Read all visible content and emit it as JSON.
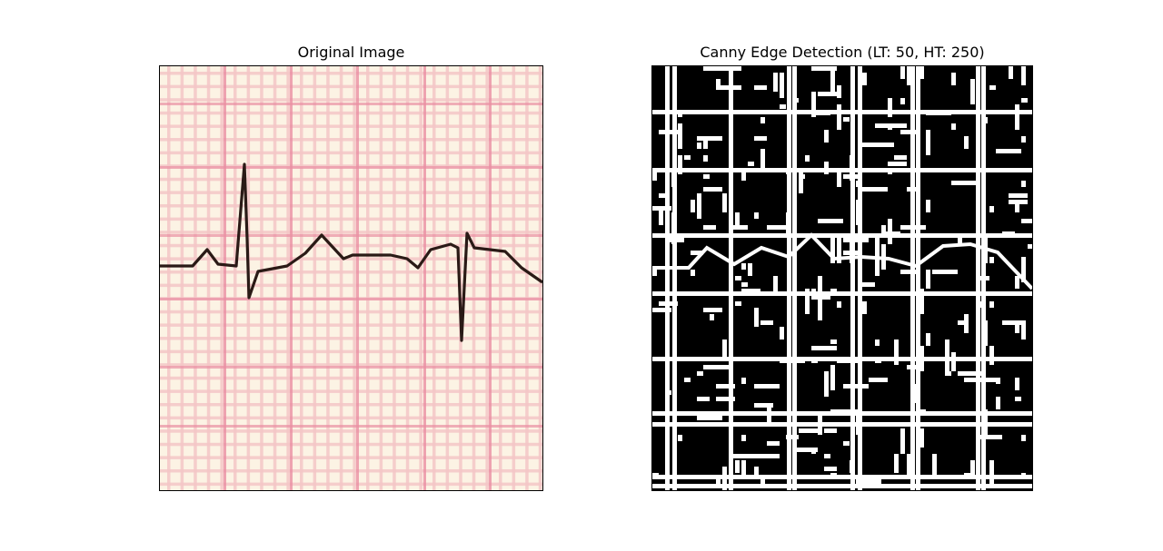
{
  "figure": {
    "panels": [
      {
        "title": "Original Image",
        "image": "ecg-strip-on-pink-grid-paper",
        "colors": {
          "paper": "#fcf3e4",
          "grid_minor": "#f3c5c7",
          "grid_major": "#ea8fa3",
          "trace": "#2a1a16"
        }
      },
      {
        "title": "Canny Edge Detection (LT: 50, HT: 250)",
        "image": "binary-edge-map",
        "colors": {
          "background": "#000000",
          "edges": "#ffffff"
        }
      }
    ]
  }
}
